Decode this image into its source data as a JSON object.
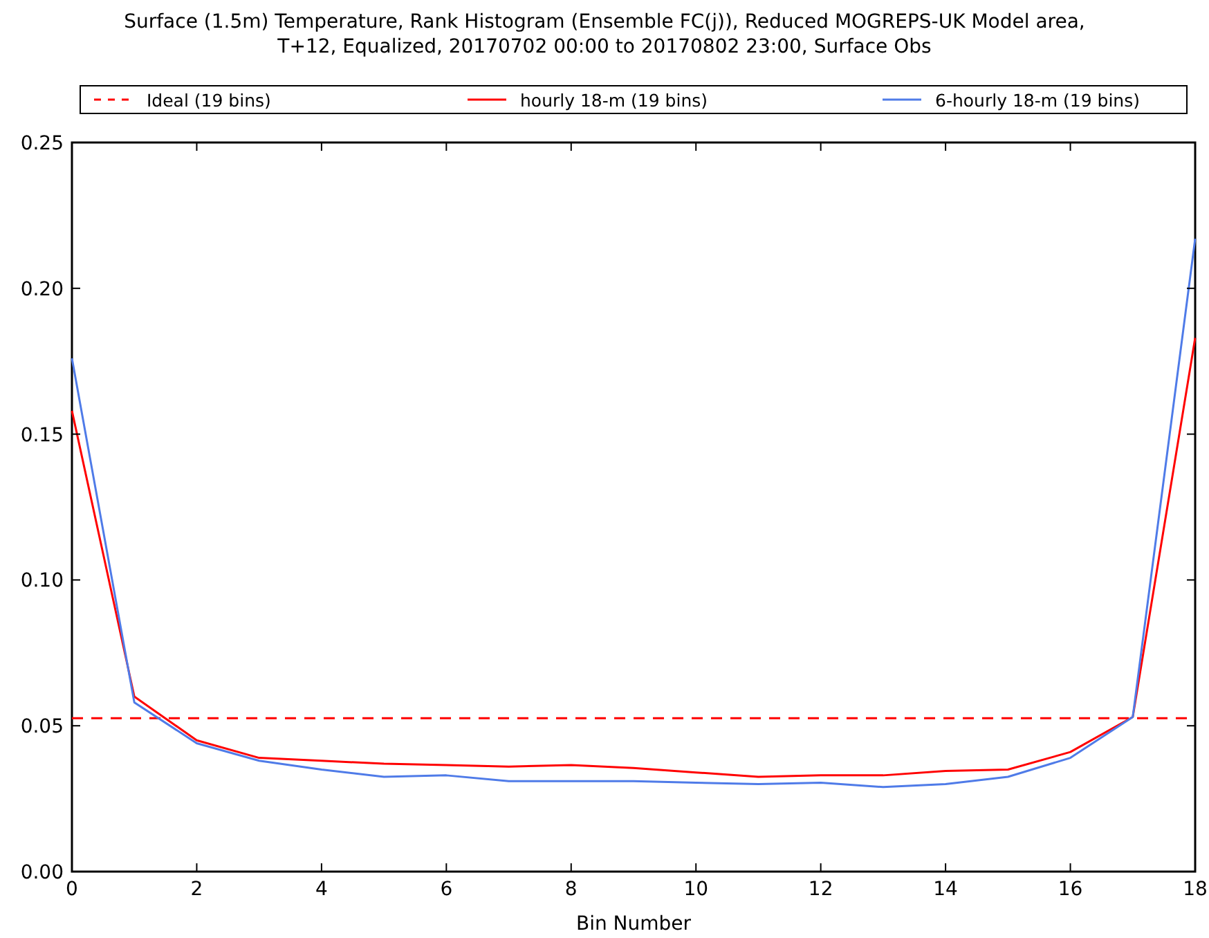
{
  "chart_data": {
    "type": "line",
    "title": "Surface (1.5m) Temperature, Rank Histogram (Ensemble FC(j)), Reduced MOGREPS-UK Model area,\nT+12, Equalized, 20170702 00:00 to 20170802 23:00, Surface Obs",
    "xlabel": "Bin Number",
    "x": [
      0,
      1,
      2,
      3,
      4,
      5,
      6,
      7,
      8,
      9,
      10,
      11,
      12,
      13,
      14,
      15,
      16,
      17,
      18
    ],
    "xlim": [
      0,
      18
    ],
    "xticks": [
      0,
      2,
      4,
      6,
      8,
      10,
      12,
      14,
      16,
      18
    ],
    "ylim": [
      0,
      0.25
    ],
    "yticks": [
      {
        "value": 0,
        "label": "0.00"
      },
      {
        "value": 0.05,
        "label": "0.05"
      },
      {
        "value": 0.1,
        "label": "0.10"
      },
      {
        "value": 0.15,
        "label": "0.15"
      },
      {
        "value": 0.2,
        "label": "0.20"
      },
      {
        "value": 0.25,
        "label": "0.25"
      }
    ],
    "legend": "top",
    "grid": false,
    "marker": "none",
    "series": [
      {
        "name": "Ideal (19 bins)",
        "color": "#ff0000",
        "line_style": "dashed",
        "values": [
          0.0526,
          0.0526,
          0.0526,
          0.0526,
          0.0526,
          0.0526,
          0.0526,
          0.0526,
          0.0526,
          0.0526,
          0.0526,
          0.0526,
          0.0526,
          0.0526,
          0.0526,
          0.0526,
          0.0526,
          0.0526,
          0.0526
        ]
      },
      {
        "name": "hourly 18-m (19 bins)",
        "color": "#ff0000",
        "line_style": "solid",
        "values": [
          0.158,
          0.06,
          0.045,
          0.039,
          0.038,
          0.037,
          0.0365,
          0.036,
          0.0365,
          0.0355,
          0.034,
          0.0325,
          0.033,
          0.033,
          0.0345,
          0.035,
          0.041,
          0.053,
          0.183
        ]
      },
      {
        "name": "6-hourly 18-m (19 bins)",
        "color": "#4f7be8",
        "line_style": "solid",
        "values": [
          0.176,
          0.058,
          0.044,
          0.038,
          0.035,
          0.0325,
          0.033,
          0.031,
          0.031,
          0.031,
          0.0305,
          0.03,
          0.0305,
          0.029,
          0.03,
          0.0325,
          0.039,
          0.053,
          0.217
        ]
      }
    ]
  }
}
